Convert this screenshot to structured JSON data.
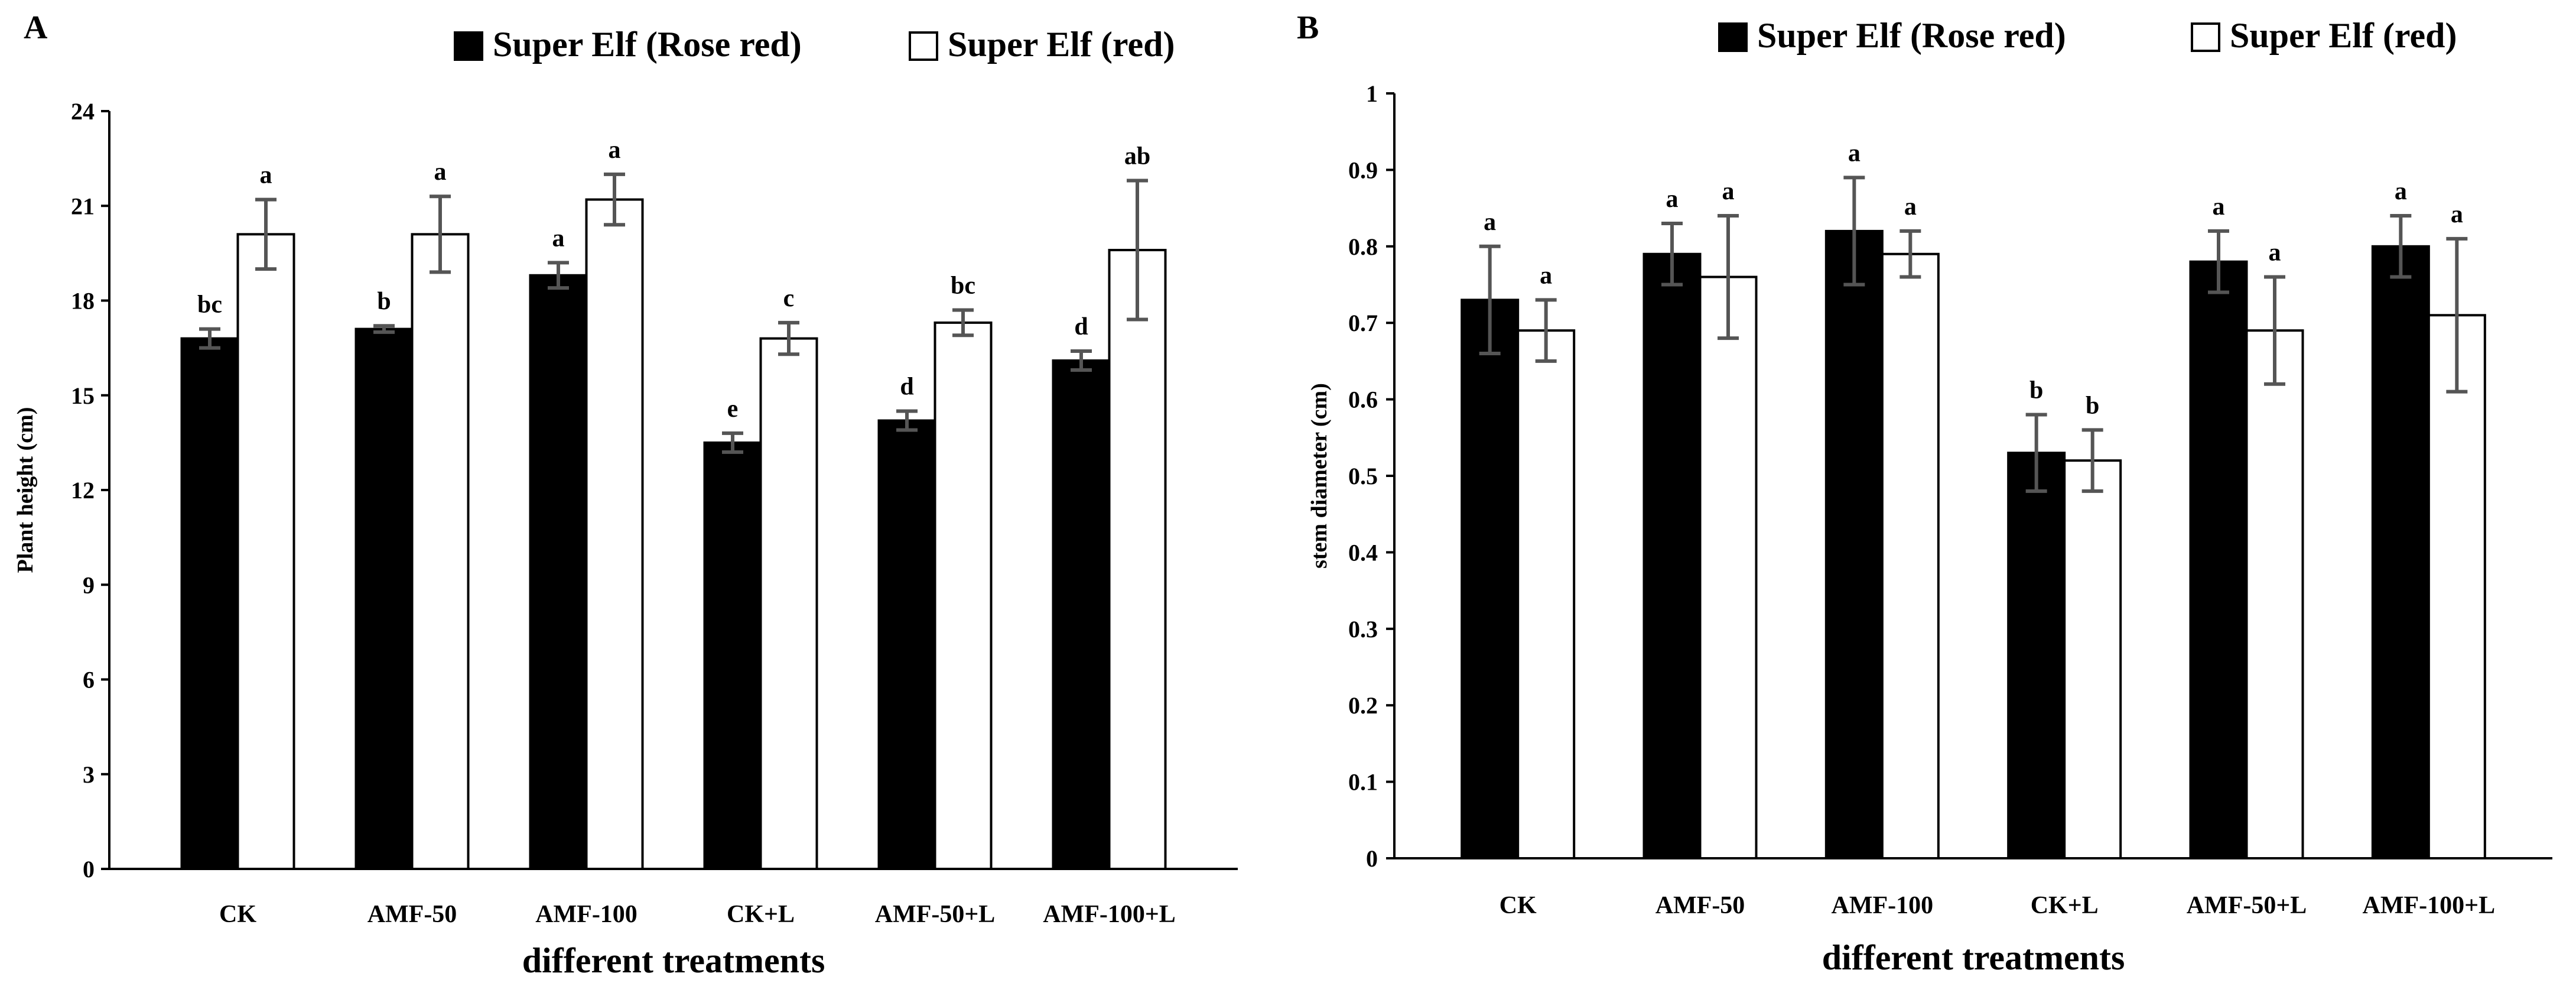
{
  "chart_data": [
    {
      "type": "bar",
      "panel_label": "A",
      "title": "",
      "xlabel": "different treatments",
      "ylabel": "Plant height (cm)",
      "ylim": [
        0,
        24
      ],
      "yticks": [
        "0",
        "3",
        "6",
        "9",
        "12",
        "15",
        "18",
        "21",
        "24"
      ],
      "categories": [
        "CK",
        "AMF-50",
        "AMF-100",
        "CK+L",
        "AMF-50+L",
        "AMF-100+L"
      ],
      "legend_position": "top-right",
      "grid": false,
      "series": [
        {
          "name": "Super Elf (Rose red)",
          "color": "#000000",
          "values": [
            16.8,
            17.1,
            18.8,
            13.5,
            14.2,
            16.1
          ],
          "errors": [
            0.3,
            0.1,
            0.4,
            0.3,
            0.3,
            0.3
          ],
          "labels": [
            "bc",
            "b",
            "a",
            "e",
            "d",
            "d"
          ]
        },
        {
          "name": "Super Elf (red)",
          "color": "#ffffff",
          "values": [
            20.1,
            20.1,
            21.2,
            16.8,
            17.3,
            19.6
          ],
          "errors": [
            1.1,
            1.2,
            0.8,
            0.5,
            0.4,
            2.2
          ],
          "labels": [
            "a",
            "a",
            "a",
            "c",
            "bc",
            "ab"
          ]
        }
      ]
    },
    {
      "type": "bar",
      "panel_label": "B",
      "title": "",
      "xlabel": "different treatments",
      "ylabel": "stem diameter (cm)",
      "ylim": [
        0,
        1
      ],
      "yticks": [
        "0",
        "0.1",
        "0.2",
        "0.3",
        "0.4",
        "0.5",
        "0.6",
        "0.7",
        "0.8",
        "0.9",
        "1"
      ],
      "categories": [
        "CK",
        "AMF-50",
        "AMF-100",
        "CK+L",
        "AMF-50+L",
        "AMF-100+L"
      ],
      "legend_position": "top-right",
      "grid": false,
      "series": [
        {
          "name": "Super Elf (Rose red)",
          "color": "#000000",
          "values": [
            0.73,
            0.79,
            0.82,
            0.53,
            0.78,
            0.8
          ],
          "errors": [
            0.07,
            0.04,
            0.07,
            0.05,
            0.04,
            0.04
          ],
          "labels": [
            "a",
            "a",
            "a",
            "b",
            "a",
            "a"
          ]
        },
        {
          "name": "Super Elf (red)",
          "color": "#ffffff",
          "values": [
            0.69,
            0.76,
            0.79,
            0.52,
            0.69,
            0.71
          ],
          "errors": [
            0.04,
            0.08,
            0.03,
            0.04,
            0.07,
            0.1
          ],
          "labels": [
            "a",
            "a",
            "a",
            "b",
            "a",
            "a"
          ]
        }
      ]
    }
  ]
}
